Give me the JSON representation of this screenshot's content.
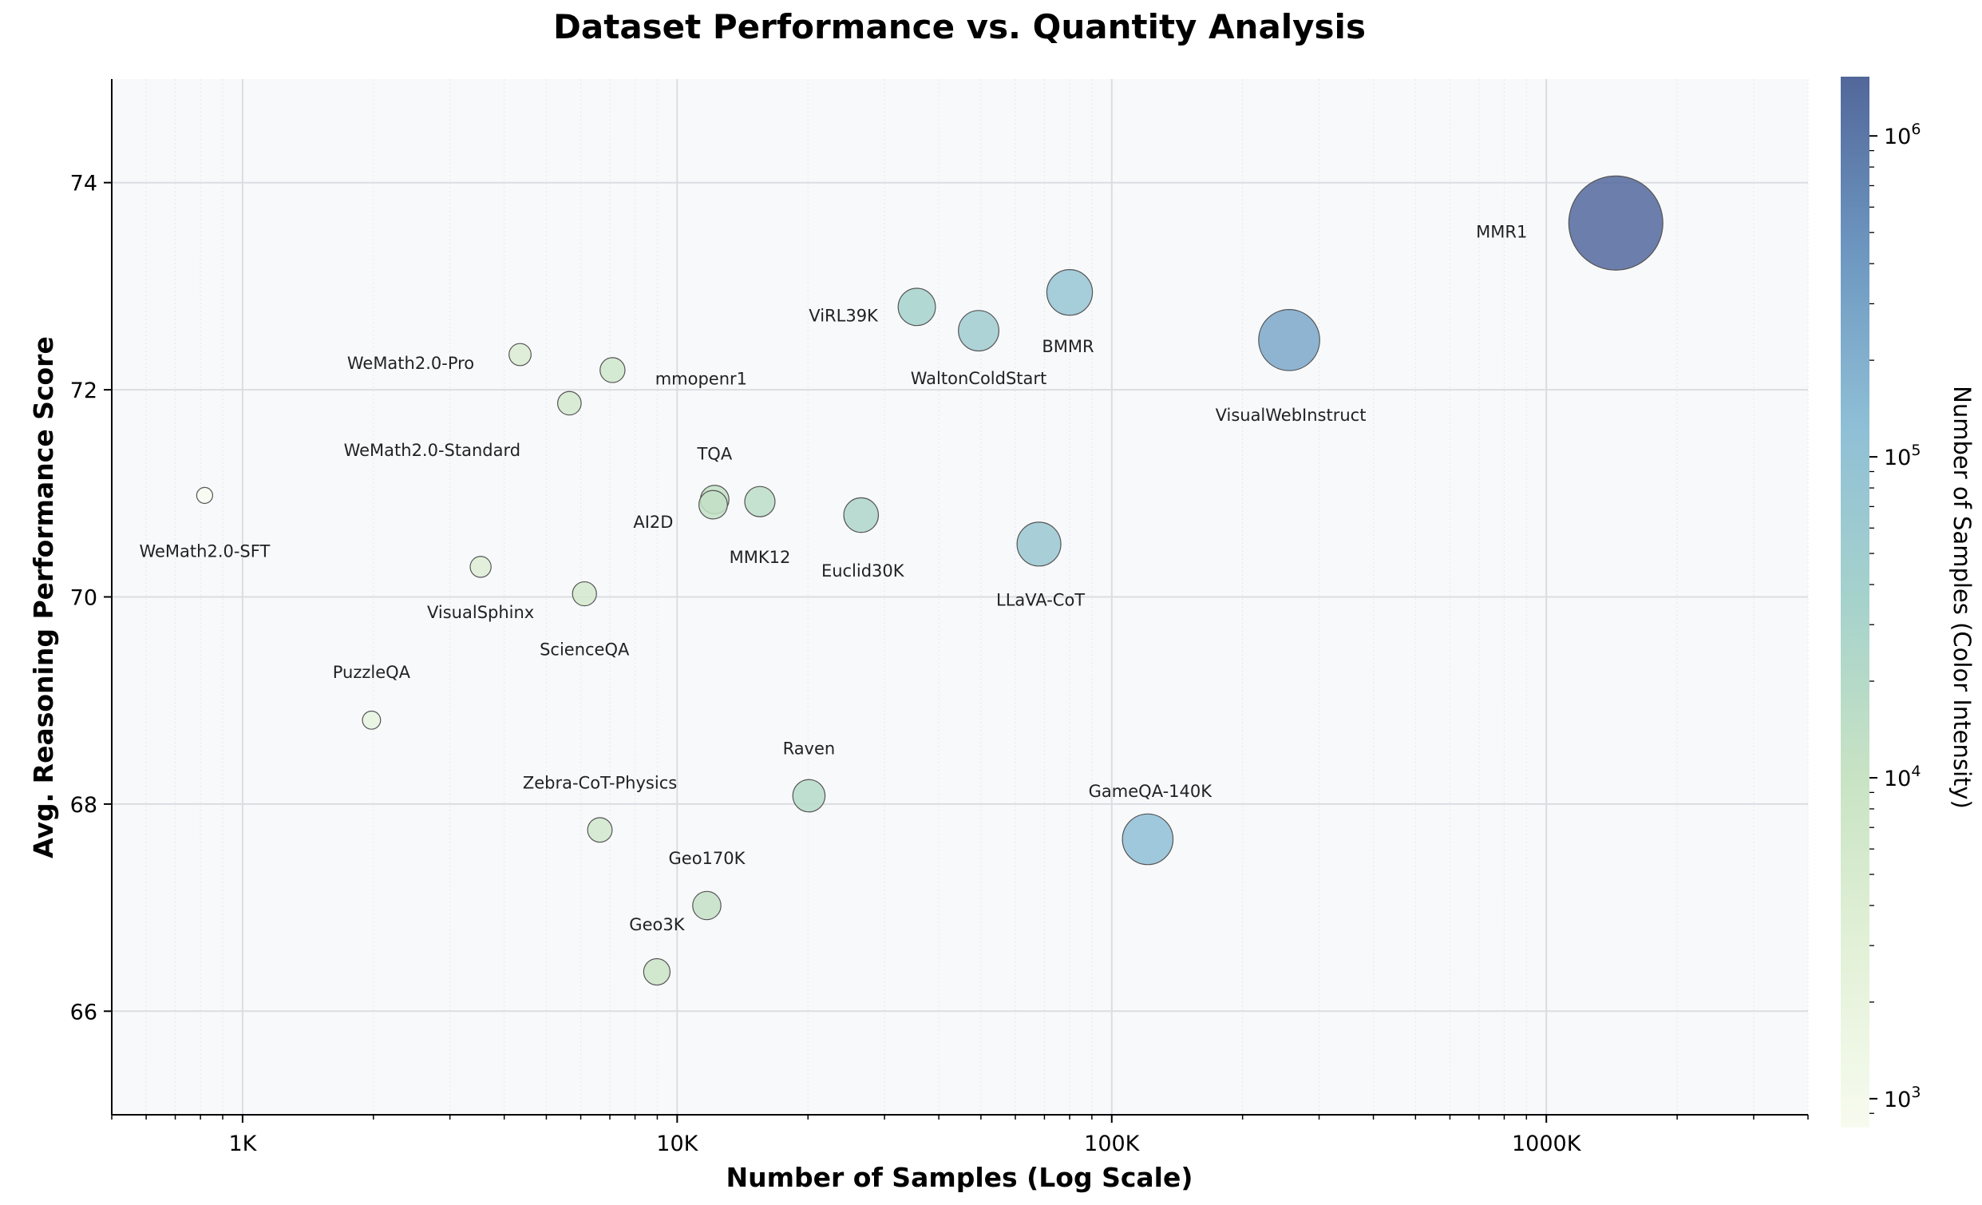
{
  "chart_data": {
    "type": "scatter",
    "title": "Dataset Performance vs. Quantity Analysis",
    "xlabel": "Number of Samples (Log Scale)",
    "ylabel": "Avg. Reasoning Performance Score",
    "xscale": "log",
    "xlim": [
      500,
      4000000
    ],
    "ylim": [
      65,
      75
    ],
    "xticks": [
      {
        "value": 1000,
        "label": "1K"
      },
      {
        "value": 10000,
        "label": "10K"
      },
      {
        "value": 100000,
        "label": "100K"
      },
      {
        "value": 1000000,
        "label": "1000K"
      }
    ],
    "yticks": [
      {
        "value": 66,
        "label": "66"
      },
      {
        "value": 68,
        "label": "68"
      },
      {
        "value": 70,
        "label": "70"
      },
      {
        "value": 72,
        "label": "72"
      },
      {
        "value": 74,
        "label": "74"
      }
    ],
    "grid": true,
    "bubble_size": "number of samples",
    "colorbar": {
      "label": "Number of Samples (Color Intensity)",
      "scale": "log",
      "range": [
        813,
        1530000
      ],
      "ticks": [
        {
          "value": 1000,
          "base": "10",
          "exp": "3"
        },
        {
          "value": 10000,
          "base": "10",
          "exp": "4"
        },
        {
          "value": 100000,
          "base": "10",
          "exp": "5"
        },
        {
          "value": 1000000,
          "base": "10",
          "exp": "6"
        }
      ],
      "colors": [
        "#f7fbef",
        "#e3f1d8",
        "#c8e3c4",
        "#a6d2cc",
        "#8fbfd6",
        "#6d97c0",
        "#52679a"
      ]
    },
    "points": [
      {
        "name": "MMR1",
        "x": 1445000,
        "y": 73.61
      },
      {
        "name": "VisualWebInstruct",
        "x": 256000,
        "y": 72.48
      },
      {
        "name": "BMMR",
        "x": 80000,
        "y": 72.94
      },
      {
        "name": "ViRL39K",
        "x": 35600,
        "y": 72.8
      },
      {
        "name": "WaltonColdStart",
        "x": 49400,
        "y": 72.57
      },
      {
        "name": "LLaVA-CoT",
        "x": 68000,
        "y": 70.51
      },
      {
        "name": "GameQA-140K",
        "x": 121000,
        "y": 67.66
      },
      {
        "name": "Euclid30K",
        "x": 26500,
        "y": 70.79
      },
      {
        "name": "MMK12",
        "x": 15500,
        "y": 70.92
      },
      {
        "name": "TQA",
        "x": 12200,
        "y": 70.94
      },
      {
        "name": "AI2D",
        "x": 12100,
        "y": 70.89
      },
      {
        "name": "Raven",
        "x": 20100,
        "y": 68.08
      },
      {
        "name": "Geo170K",
        "x": 11700,
        "y": 67.02
      },
      {
        "name": "Geo3K",
        "x": 8980,
        "y": 66.38
      },
      {
        "name": "Zebra-CoT-Physics",
        "x": 6640,
        "y": 67.75
      },
      {
        "name": "ScienceQA",
        "x": 6120,
        "y": 70.03
      },
      {
        "name": "VisualSphinx",
        "x": 3530,
        "y": 70.29
      },
      {
        "name": "PuzzleQA",
        "x": 1980,
        "y": 68.81
      },
      {
        "name": "WeMath2.0-SFT",
        "x": 818,
        "y": 70.98
      },
      {
        "name": "WeMath2.0-Pro",
        "x": 4350,
        "y": 72.34
      },
      {
        "name": "mmopenr1",
        "x": 7100,
        "y": 72.19
      },
      {
        "name": "WeMath2.0-Standard",
        "x": 5650,
        "y": 71.87
      }
    ]
  }
}
